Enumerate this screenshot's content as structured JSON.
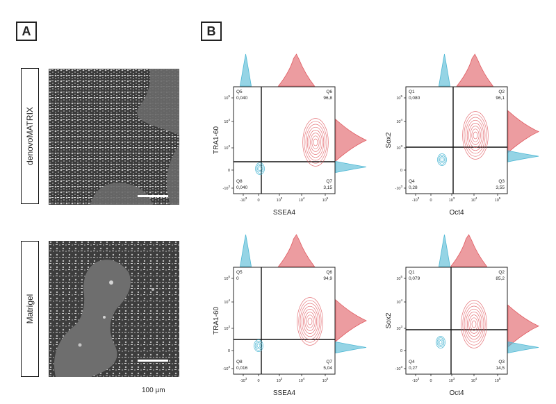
{
  "panels": {
    "a": "A",
    "b": "B"
  },
  "conditions": [
    "denovoMATRIX",
    "Matrigel"
  ],
  "scale_bar_label": "100 µm",
  "tick_labels": [
    "-10",
    "0",
    "10",
    "10",
    "10",
    "10"
  ],
  "tick_exponents": [
    "3",
    "3",
    "4",
    "5"
  ],
  "colors": {
    "positive": "#e05a60",
    "control": "#4fb8d4"
  },
  "chart_data": [
    {
      "type": "scatter",
      "xlabel": "SSEA4",
      "ylabel": "TRA1-60",
      "quadrants": [
        {
          "name": "Q5",
          "value": "0,040"
        },
        {
          "name": "Q6",
          "value": "96,8"
        },
        {
          "name": "Q8",
          "value": "0,040"
        },
        {
          "name": "Q7",
          "value": "3,15"
        }
      ]
    },
    {
      "type": "scatter",
      "xlabel": "Oct4",
      "ylabel": "Sox2",
      "quadrants": [
        {
          "name": "Q1",
          "value": "0,080"
        },
        {
          "name": "Q2",
          "value": "96,1"
        },
        {
          "name": "Q4",
          "value": "0,28"
        },
        {
          "name": "Q3",
          "value": "3,55"
        }
      ]
    },
    {
      "type": "scatter",
      "xlabel": "SSEA4",
      "ylabel": "TRA1-60",
      "quadrants": [
        {
          "name": "Q5",
          "value": "0"
        },
        {
          "name": "Q6",
          "value": "94,9"
        },
        {
          "name": "Q8",
          "value": "0,016"
        },
        {
          "name": "Q7",
          "value": "5,04"
        }
      ]
    },
    {
      "type": "scatter",
      "xlabel": "Oct4",
      "ylabel": "Sox2",
      "quadrants": [
        {
          "name": "Q1",
          "value": "0,079"
        },
        {
          "name": "Q2",
          "value": "85,2"
        },
        {
          "name": "Q4",
          "value": "0,27"
        },
        {
          "name": "Q3",
          "value": "14,5"
        }
      ]
    }
  ]
}
